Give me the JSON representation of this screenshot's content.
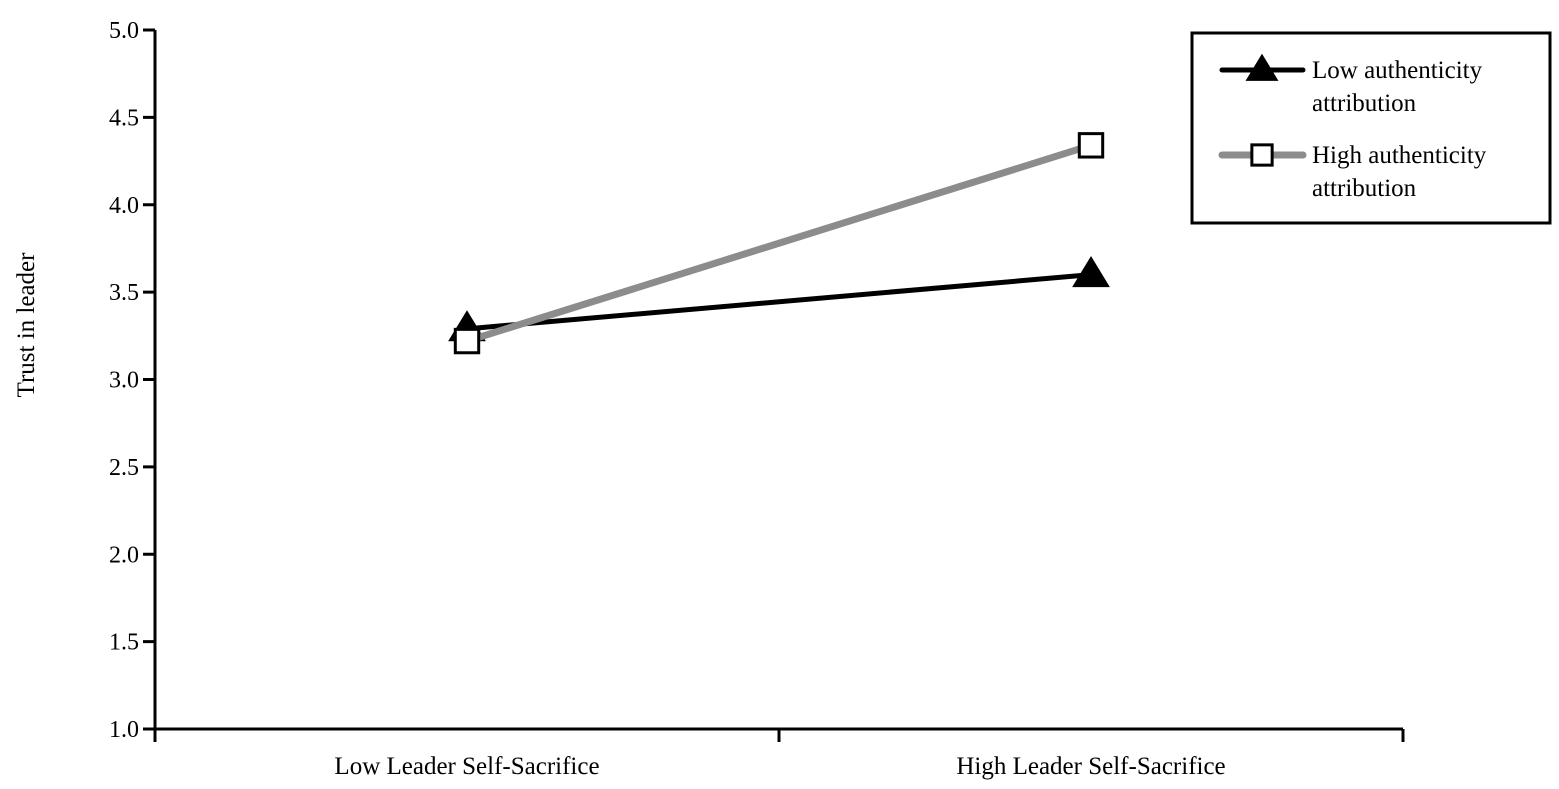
{
  "chart_data": {
    "type": "line",
    "categories": [
      "Low Leader Self-Sacrifice",
      "High Leader Self-Sacrifice"
    ],
    "ylabel": "Trust in leader",
    "xlabel": "",
    "ylim": [
      1.0,
      5.0
    ],
    "yticks": [
      "1.0",
      "1.5",
      "2.0",
      "2.5",
      "3.0",
      "3.5",
      "4.0",
      "4.5",
      "5.0"
    ],
    "grid": false,
    "legend_position": "top-right",
    "series": [
      {
        "name": [
          "Low authenticity",
          "attribution"
        ],
        "values": [
          3.29,
          3.6
        ],
        "color": "#000000",
        "marker": "triangle-filled"
      },
      {
        "name": [
          "High authenticity",
          "attribution"
        ],
        "values": [
          3.22,
          4.34
        ],
        "color": "#8c8c8c",
        "marker": "square-open"
      }
    ]
  }
}
